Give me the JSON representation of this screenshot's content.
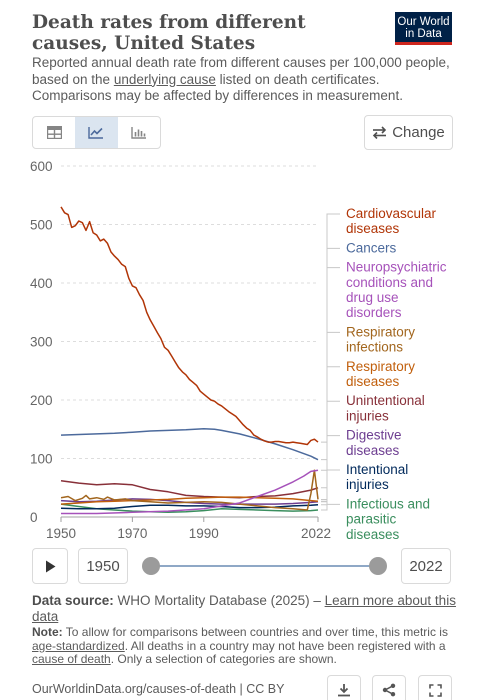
{
  "header": {
    "title": "Death rates from different causes, United States",
    "logo_line1": "Our World",
    "logo_line2": "in Data",
    "subtitle_part1": "Reported annual death rate from different causes per 100,000 people, based on the ",
    "subtitle_link": "underlying cause",
    "subtitle_part2": " listed on death certificates. Comparisons may be affected by differences in measurement."
  },
  "toolbar": {
    "view_icons": [
      "table-icon",
      "line-chart-icon",
      "bar-chart-icon"
    ],
    "active_view": "line-chart-icon",
    "change_label": "Change",
    "change_icon": "swap-arrows-icon"
  },
  "timeline": {
    "start_year": "1950",
    "end_year": "2022"
  },
  "source": {
    "label": "Data source:",
    "text": " WHO Mortality Database (2025) – ",
    "link": "Learn more about this data"
  },
  "note": {
    "label": "Note:",
    "part1": " To allow for comparisons between countries and over time, this metric is ",
    "link1": "age-standardized",
    "part2": ". All deaths in a country may not have been registered with a ",
    "link2": "cause of death",
    "part3": ". Only a selection of categories are shown."
  },
  "footer": {
    "url": "OurWorldinData.org/causes-of-death | CC BY",
    "icons": [
      "download-icon",
      "share-icon",
      "fullscreen-icon"
    ]
  },
  "chart_data": {
    "type": "line",
    "title": "Death rates from different causes, United States",
    "xlim": [
      1950,
      2022
    ],
    "ylim": [
      0,
      600
    ],
    "x_ticks": [
      1950,
      1970,
      1990,
      2022
    ],
    "y_ticks": [
      0,
      100,
      200,
      300,
      400,
      500,
      600
    ],
    "grid": "horizontal dashed",
    "legend": "right, labels at line ends",
    "series": [
      {
        "name": "Cardiovascular diseases",
        "color": "#b13507",
        "points": [
          [
            1950,
            530
          ],
          [
            1951,
            520
          ],
          [
            1952,
            517
          ],
          [
            1953,
            495
          ],
          [
            1954,
            498
          ],
          [
            1955,
            506
          ],
          [
            1956,
            503
          ],
          [
            1957,
            490
          ],
          [
            1958,
            505
          ],
          [
            1959,
            486
          ],
          [
            1960,
            482
          ],
          [
            1961,
            472
          ],
          [
            1962,
            475
          ],
          [
            1963,
            468
          ],
          [
            1964,
            453
          ],
          [
            1965,
            446
          ],
          [
            1966,
            440
          ],
          [
            1967,
            432
          ],
          [
            1968,
            428
          ],
          [
            1969,
            408
          ],
          [
            1970,
            395
          ],
          [
            1971,
            392
          ],
          [
            1972,
            380
          ],
          [
            1973,
            370
          ],
          [
            1974,
            350
          ],
          [
            1975,
            337
          ],
          [
            1976,
            326
          ],
          [
            1977,
            315
          ],
          [
            1978,
            305
          ],
          [
            1979,
            290
          ],
          [
            1980,
            285
          ],
          [
            1981,
            275
          ],
          [
            1982,
            265
          ],
          [
            1983,
            255
          ],
          [
            1984,
            248
          ],
          [
            1985,
            243
          ],
          [
            1986,
            235
          ],
          [
            1987,
            230
          ],
          [
            1988,
            225
          ],
          [
            1989,
            215
          ],
          [
            1990,
            210
          ],
          [
            1991,
            205
          ],
          [
            1992,
            200
          ],
          [
            1993,
            198
          ],
          [
            1994,
            193
          ],
          [
            1995,
            190
          ],
          [
            1996,
            185
          ],
          [
            1997,
            180
          ],
          [
            1998,
            176
          ],
          [
            1999,
            172
          ],
          [
            2000,
            165
          ],
          [
            2001,
            158
          ],
          [
            2002,
            152
          ],
          [
            2003,
            148
          ],
          [
            2004,
            140
          ],
          [
            2005,
            137
          ],
          [
            2006,
            133
          ],
          [
            2007,
            130
          ],
          [
            2008,
            128
          ],
          [
            2009,
            128
          ],
          [
            2010,
            129
          ],
          [
            2011,
            129
          ],
          [
            2012,
            128
          ],
          [
            2013,
            127
          ],
          [
            2014,
            127
          ],
          [
            2015,
            128
          ],
          [
            2016,
            127
          ],
          [
            2017,
            126
          ],
          [
            2018,
            125
          ],
          [
            2019,
            124
          ],
          [
            2020,
            131
          ],
          [
            2021,
            133
          ],
          [
            2022,
            128
          ]
        ]
      },
      {
        "name": "Cancers",
        "color": "#4c6a9c",
        "points": [
          [
            1950,
            140
          ],
          [
            1955,
            141
          ],
          [
            1960,
            142
          ],
          [
            1965,
            143
          ],
          [
            1970,
            145
          ],
          [
            1975,
            147
          ],
          [
            1980,
            148
          ],
          [
            1985,
            149
          ],
          [
            1990,
            151
          ],
          [
            1993,
            150
          ],
          [
            1995,
            148
          ],
          [
            2000,
            142
          ],
          [
            2005,
            134
          ],
          [
            2010,
            125
          ],
          [
            2015,
            115
          ],
          [
            2020,
            104
          ],
          [
            2022,
            98
          ]
        ]
      },
      {
        "name": "Neuropsychiatric conditions and drug use disorders",
        "color": "#a652ba",
        "points": [
          [
            1950,
            6
          ],
          [
            1960,
            6
          ],
          [
            1970,
            8
          ],
          [
            1980,
            10
          ],
          [
            1990,
            14
          ],
          [
            2000,
            24
          ],
          [
            2005,
            35
          ],
          [
            2010,
            46
          ],
          [
            2015,
            60
          ],
          [
            2018,
            70
          ],
          [
            2020,
            78
          ],
          [
            2022,
            80
          ]
        ]
      },
      {
        "name": "Respiratory infections",
        "color": "#a2661e",
        "points": [
          [
            1950,
            33
          ],
          [
            1952,
            35
          ],
          [
            1954,
            28
          ],
          [
            1956,
            32
          ],
          [
            1957,
            37
          ],
          [
            1958,
            31
          ],
          [
            1960,
            33
          ],
          [
            1962,
            30
          ],
          [
            1963,
            34
          ],
          [
            1965,
            29
          ],
          [
            1968,
            31
          ],
          [
            1970,
            28
          ],
          [
            1975,
            26
          ],
          [
            1980,
            24
          ],
          [
            1985,
            25
          ],
          [
            1990,
            26
          ],
          [
            1995,
            25
          ],
          [
            2000,
            22
          ],
          [
            2005,
            19
          ],
          [
            2010,
            16
          ],
          [
            2015,
            14
          ],
          [
            2019,
            12
          ],
          [
            2020,
            40
          ],
          [
            2021,
            80
          ],
          [
            2022,
            30
          ]
        ]
      },
      {
        "name": "Respiratory diseases",
        "color": "#c15f0c",
        "points": [
          [
            1950,
            22
          ],
          [
            1955,
            24
          ],
          [
            1960,
            26
          ],
          [
            1965,
            27
          ],
          [
            1970,
            28
          ],
          [
            1975,
            29
          ],
          [
            1980,
            30
          ],
          [
            1985,
            32
          ],
          [
            1990,
            33
          ],
          [
            1995,
            34
          ],
          [
            2000,
            34
          ],
          [
            2005,
            33
          ],
          [
            2010,
            32
          ],
          [
            2015,
            31
          ],
          [
            2020,
            28
          ],
          [
            2022,
            27
          ]
        ]
      },
      {
        "name": "Unintentional injuries",
        "color": "#883039",
        "points": [
          [
            1950,
            62
          ],
          [
            1955,
            58
          ],
          [
            1960,
            55
          ],
          [
            1965,
            57
          ],
          [
            1970,
            55
          ],
          [
            1975,
            47
          ],
          [
            1980,
            43
          ],
          [
            1985,
            37
          ],
          [
            1990,
            35
          ],
          [
            1995,
            34
          ],
          [
            2000,
            33
          ],
          [
            2005,
            35
          ],
          [
            2010,
            36
          ],
          [
            2015,
            40
          ],
          [
            2020,
            46
          ],
          [
            2022,
            50
          ]
        ]
      },
      {
        "name": "Digestive diseases",
        "color": "#6d3e91",
        "points": [
          [
            1950,
            28
          ],
          [
            1955,
            26
          ],
          [
            1960,
            27
          ],
          [
            1965,
            29
          ],
          [
            1970,
            31
          ],
          [
            1975,
            30
          ],
          [
            1980,
            28
          ],
          [
            1985,
            25
          ],
          [
            1990,
            23
          ],
          [
            1995,
            22
          ],
          [
            2000,
            22
          ],
          [
            2005,
            22
          ],
          [
            2010,
            22
          ],
          [
            2015,
            23
          ],
          [
            2020,
            25
          ],
          [
            2022,
            26
          ]
        ]
      },
      {
        "name": "Intentional injuries",
        "color": "#00295b",
        "points": [
          [
            1950,
            15
          ],
          [
            1955,
            14
          ],
          [
            1960,
            14
          ],
          [
            1965,
            15
          ],
          [
            1970,
            18
          ],
          [
            1975,
            20
          ],
          [
            1980,
            20
          ],
          [
            1985,
            19
          ],
          [
            1990,
            19
          ],
          [
            1995,
            18
          ],
          [
            2000,
            16
          ],
          [
            2005,
            16
          ],
          [
            2010,
            17
          ],
          [
            2015,
            19
          ],
          [
            2020,
            20
          ],
          [
            2022,
            21
          ]
        ]
      },
      {
        "name": "Infectious and parasitic diseases",
        "color": "#3a8e5e",
        "points": [
          [
            1950,
            22
          ],
          [
            1955,
            18
          ],
          [
            1960,
            14
          ],
          [
            1965,
            12
          ],
          [
            1970,
            10
          ],
          [
            1975,
            9
          ],
          [
            1980,
            8
          ],
          [
            1985,
            9
          ],
          [
            1990,
            11
          ],
          [
            1995,
            14
          ],
          [
            2000,
            13
          ],
          [
            2005,
            12
          ],
          [
            2010,
            11
          ],
          [
            2015,
            10
          ],
          [
            2020,
            11
          ],
          [
            2022,
            12
          ]
        ]
      }
    ]
  }
}
